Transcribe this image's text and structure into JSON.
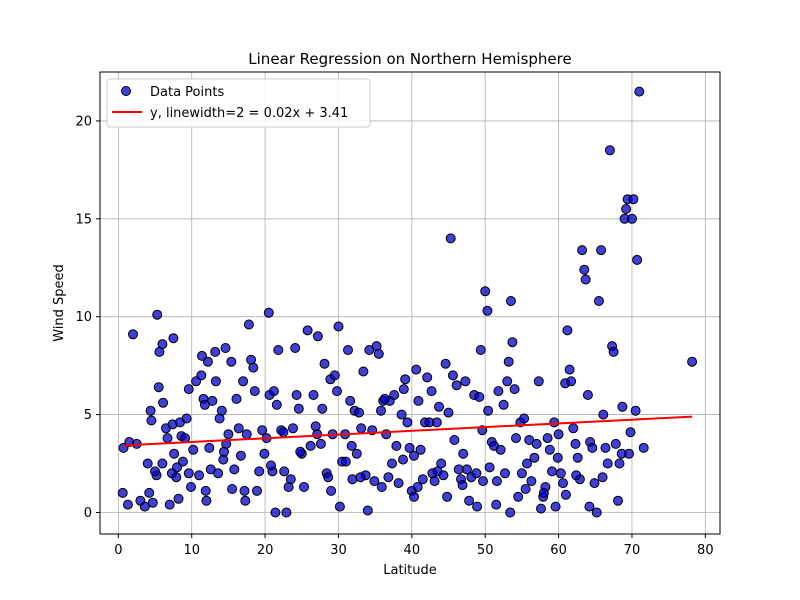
{
  "chart_data": {
    "type": "scatter",
    "title": "Linear Regression on Northern Hemisphere",
    "xlabel": "Latitude",
    "ylabel": "Wind Speed",
    "xlim": [
      -2.5,
      82
    ],
    "ylim": [
      -1.1,
      22.5
    ],
    "xticks": [
      0,
      10,
      20,
      30,
      40,
      50,
      60,
      70,
      80
    ],
    "yticks": [
      0,
      5,
      10,
      15,
      20
    ],
    "grid": true,
    "legend_position": "top-left",
    "colors": {
      "points_fill": "#0000cc",
      "points_stroke": "#000000",
      "line": "#ff0000"
    },
    "series": [
      {
        "name": "Data Points",
        "kind": "scatter",
        "points": [
          [
            0.7,
            3.3
          ],
          [
            1.5,
            3.6
          ],
          [
            2.5,
            3.5
          ],
          [
            2.0,
            9.1
          ],
          [
            3.0,
            0.6
          ],
          [
            1.3,
            0.4
          ],
          [
            0.6,
            1.0
          ],
          [
            4.0,
            2.5
          ],
          [
            4.4,
            5.2
          ],
          [
            4.2,
            1.0
          ],
          [
            4.7,
            0.5
          ],
          [
            4.5,
            4.7
          ],
          [
            5.2,
            1.9
          ],
          [
            5.5,
            6.4
          ],
          [
            5.3,
            10.1
          ],
          [
            5.6,
            8.2
          ],
          [
            6.0,
            8.6
          ],
          [
            6.1,
            5.6
          ],
          [
            6.0,
            2.5
          ],
          [
            6.5,
            4.3
          ],
          [
            6.7,
            3.8
          ],
          [
            7.0,
            0.4
          ],
          [
            7.3,
            2.0
          ],
          [
            7.6,
            3.0
          ],
          [
            7.9,
            1.8
          ],
          [
            7.5,
            8.9
          ],
          [
            7.4,
            4.5
          ],
          [
            8.0,
            2.3
          ],
          [
            8.4,
            4.6
          ],
          [
            8.6,
            3.9
          ],
          [
            8.8,
            2.6
          ],
          [
            9.1,
            3.8
          ],
          [
            9.3,
            4.8
          ],
          [
            9.6,
            6.3
          ],
          [
            9.6,
            2.0
          ],
          [
            10.2,
            3.2
          ],
          [
            10.6,
            6.7
          ],
          [
            11.0,
            1.9
          ],
          [
            11.3,
            7.0
          ],
          [
            11.4,
            8.0
          ],
          [
            11.6,
            5.8
          ],
          [
            11.8,
            5.5
          ],
          [
            11.9,
            1.1
          ],
          [
            12.2,
            7.7
          ],
          [
            12.4,
            3.3
          ],
          [
            12.6,
            2.2
          ],
          [
            12.8,
            5.7
          ],
          [
            13.2,
            8.2
          ],
          [
            13.3,
            6.7
          ],
          [
            13.6,
            2.0
          ],
          [
            13.8,
            4.8
          ],
          [
            14.1,
            5.2
          ],
          [
            14.3,
            2.7
          ],
          [
            14.6,
            8.4
          ],
          [
            14.7,
            3.5
          ],
          [
            15.0,
            4.0
          ],
          [
            15.4,
            7.7
          ],
          [
            15.5,
            1.2
          ],
          [
            15.8,
            2.2
          ],
          [
            16.1,
            5.8
          ],
          [
            16.4,
            4.3
          ],
          [
            16.7,
            2.9
          ],
          [
            17.0,
            6.7
          ],
          [
            17.2,
            1.1
          ],
          [
            17.5,
            4.0
          ],
          [
            17.8,
            9.6
          ],
          [
            18.1,
            7.8
          ],
          [
            18.4,
            7.4
          ],
          [
            18.6,
            6.2
          ],
          [
            18.9,
            1.1
          ],
          [
            19.2,
            2.1
          ],
          [
            19.6,
            4.2
          ],
          [
            19.9,
            3.0
          ],
          [
            20.2,
            3.8
          ],
          [
            20.5,
            10.2
          ],
          [
            20.6,
            6.0
          ],
          [
            21.0,
            2.1
          ],
          [
            21.2,
            6.2
          ],
          [
            21.4,
            0.0
          ],
          [
            21.6,
            5.5
          ],
          [
            21.8,
            8.3
          ],
          [
            22.2,
            4.2
          ],
          [
            22.5,
            4.1
          ],
          [
            22.6,
            2.1
          ],
          [
            22.9,
            0.0
          ],
          [
            23.2,
            1.3
          ],
          [
            23.5,
            1.7
          ],
          [
            23.8,
            4.3
          ],
          [
            24.1,
            8.4
          ],
          [
            24.3,
            6.0
          ],
          [
            24.6,
            5.3
          ],
          [
            25.0,
            3.0
          ],
          [
            25.3,
            1.3
          ],
          [
            25.8,
            9.3
          ],
          [
            26.2,
            3.4
          ],
          [
            26.6,
            6.0
          ],
          [
            26.9,
            4.4
          ],
          [
            27.2,
            9.0
          ],
          [
            27.6,
            3.5
          ],
          [
            27.8,
            5.3
          ],
          [
            28.1,
            7.6
          ],
          [
            28.4,
            2.0
          ],
          [
            28.6,
            1.8
          ],
          [
            28.9,
            6.8
          ],
          [
            29.2,
            4.0
          ],
          [
            29.5,
            7.0
          ],
          [
            29.8,
            6.2
          ],
          [
            30.0,
            9.5
          ],
          [
            30.2,
            0.3
          ],
          [
            30.5,
            2.6
          ],
          [
            30.9,
            4.0
          ],
          [
            31.0,
            2.6
          ],
          [
            31.3,
            8.3
          ],
          [
            31.6,
            5.7
          ],
          [
            31.9,
            1.7
          ],
          [
            32.2,
            5.2
          ],
          [
            32.5,
            3.0
          ],
          [
            32.8,
            5.1
          ],
          [
            33.1,
            4.3
          ],
          [
            33.4,
            7.2
          ],
          [
            33.7,
            1.9
          ],
          [
            34.0,
            0.1
          ],
          [
            34.2,
            8.3
          ],
          [
            34.6,
            4.2
          ],
          [
            34.9,
            1.6
          ],
          [
            35.2,
            8.5
          ],
          [
            35.5,
            8.1
          ],
          [
            35.8,
            5.2
          ],
          [
            36.1,
            5.7
          ],
          [
            36.5,
            4.0
          ],
          [
            36.8,
            1.8
          ],
          [
            37.0,
            5.7
          ],
          [
            37.3,
            2.5
          ],
          [
            37.6,
            6.0
          ],
          [
            37.9,
            3.4
          ],
          [
            38.2,
            1.5
          ],
          [
            38.6,
            5.0
          ],
          [
            38.9,
            6.3
          ],
          [
            39.1,
            6.8
          ],
          [
            39.4,
            4.6
          ],
          [
            39.7,
            3.3
          ],
          [
            40.0,
            1.1
          ],
          [
            40.3,
            0.8
          ],
          [
            40.3,
            2.9
          ],
          [
            40.6,
            7.3
          ],
          [
            40.9,
            5.7
          ],
          [
            41.2,
            3.2
          ],
          [
            41.5,
            1.7
          ],
          [
            41.8,
            4.6
          ],
          [
            42.1,
            6.9
          ],
          [
            42.4,
            4.6
          ],
          [
            42.7,
            6.2
          ],
          [
            42.8,
            2.0
          ],
          [
            43.1,
            1.6
          ],
          [
            43.4,
            4.6
          ],
          [
            43.7,
            5.4
          ],
          [
            44.0,
            2.5
          ],
          [
            44.3,
            1.9
          ],
          [
            44.6,
            7.6
          ],
          [
            45.0,
            5.1
          ],
          [
            45.3,
            14.0
          ],
          [
            45.6,
            7.0
          ],
          [
            45.8,
            3.7
          ],
          [
            46.1,
            6.5
          ],
          [
            46.4,
            2.2
          ],
          [
            46.7,
            1.7
          ],
          [
            47.0,
            3.0
          ],
          [
            47.3,
            6.7
          ],
          [
            47.5,
            2.2
          ],
          [
            47.8,
            0.6
          ],
          [
            48.1,
            1.8
          ],
          [
            48.5,
            6.0
          ],
          [
            48.8,
            2.0
          ],
          [
            49.2,
            5.9
          ],
          [
            49.4,
            8.3
          ],
          [
            49.7,
            1.6
          ],
          [
            50.0,
            11.3
          ],
          [
            50.3,
            10.3
          ],
          [
            50.4,
            5.2
          ],
          [
            50.6,
            2.3
          ],
          [
            50.9,
            3.6
          ],
          [
            51.2,
            3.4
          ],
          [
            51.5,
            0.4
          ],
          [
            51.8,
            6.2
          ],
          [
            52.1,
            3.2
          ],
          [
            52.5,
            5.5
          ],
          [
            52.7,
            2.0
          ],
          [
            53.0,
            6.7
          ],
          [
            53.2,
            7.7
          ],
          [
            53.5,
            10.8
          ],
          [
            53.7,
            8.7
          ],
          [
            54.0,
            6.3
          ],
          [
            54.2,
            3.8
          ],
          [
            54.5,
            0.8
          ],
          [
            54.8,
            4.6
          ],
          [
            55.0,
            2.0
          ],
          [
            55.3,
            4.8
          ],
          [
            55.7,
            2.5
          ],
          [
            56.0,
            3.7
          ],
          [
            56.3,
            1.6
          ],
          [
            56.7,
            2.8
          ],
          [
            57.0,
            3.5
          ],
          [
            57.3,
            6.7
          ],
          [
            57.6,
            0.2
          ],
          [
            57.9,
            0.8
          ],
          [
            58.2,
            1.3
          ],
          [
            58.5,
            3.8
          ],
          [
            58.8,
            3.2
          ],
          [
            59.1,
            2.1
          ],
          [
            59.4,
            4.6
          ],
          [
            59.6,
            0.3
          ],
          [
            60.0,
            4.0
          ],
          [
            60.3,
            2.0
          ],
          [
            60.6,
            1.5
          ],
          [
            60.9,
            6.6
          ],
          [
            61.2,
            9.3
          ],
          [
            61.5,
            7.3
          ],
          [
            61.7,
            6.7
          ],
          [
            62.0,
            4.3
          ],
          [
            62.3,
            3.5
          ],
          [
            62.6,
            2.8
          ],
          [
            62.9,
            1.7
          ],
          [
            63.2,
            13.4
          ],
          [
            63.5,
            12.4
          ],
          [
            63.7,
            11.9
          ],
          [
            64.0,
            6.0
          ],
          [
            64.3,
            3.6
          ],
          [
            64.6,
            3.3
          ],
          [
            64.9,
            1.5
          ],
          [
            65.2,
            0.0
          ],
          [
            65.5,
            10.8
          ],
          [
            65.8,
            13.4
          ],
          [
            66.1,
            5.0
          ],
          [
            66.4,
            3.3
          ],
          [
            66.7,
            2.5
          ],
          [
            67.0,
            18.5
          ],
          [
            67.3,
            8.5
          ],
          [
            67.5,
            8.2
          ],
          [
            67.8,
            3.5
          ],
          [
            68.1,
            0.6
          ],
          [
            68.3,
            2.5
          ],
          [
            68.7,
            5.4
          ],
          [
            69.0,
            15.0
          ],
          [
            69.2,
            15.5
          ],
          [
            69.4,
            16.0
          ],
          [
            69.6,
            3.0
          ],
          [
            69.8,
            4.1
          ],
          [
            70.0,
            15.0
          ],
          [
            70.2,
            16.0
          ],
          [
            70.5,
            5.2
          ],
          [
            70.7,
            12.9
          ],
          [
            71.0,
            21.5
          ],
          [
            71.6,
            3.3
          ],
          [
            78.2,
            7.7
          ],
          [
            3.6,
            0.3
          ],
          [
            5.0,
            2.1
          ],
          [
            8.2,
            0.7
          ],
          [
            9.9,
            1.3
          ],
          [
            12.0,
            0.6
          ],
          [
            14.4,
            3.1
          ],
          [
            17.3,
            0.6
          ],
          [
            20.8,
            2.4
          ],
          [
            24.8,
            3.1
          ],
          [
            27.1,
            4.0
          ],
          [
            29.0,
            1.1
          ],
          [
            31.8,
            3.4
          ],
          [
            33.0,
            1.8
          ],
          [
            35.9,
            1.3
          ],
          [
            36.3,
            5.8
          ],
          [
            38.8,
            2.7
          ],
          [
            40.8,
            1.3
          ],
          [
            43.5,
            2.1
          ],
          [
            44.8,
            0.8
          ],
          [
            46.9,
            1.4
          ],
          [
            48.9,
            0.3
          ],
          [
            49.6,
            4.2
          ],
          [
            51.6,
            1.6
          ],
          [
            53.4,
            0.0
          ],
          [
            55.5,
            1.2
          ],
          [
            58.0,
            1.0
          ],
          [
            59.9,
            2.8
          ],
          [
            61.0,
            0.9
          ],
          [
            62.4,
            1.9
          ],
          [
            64.2,
            0.3
          ],
          [
            66.0,
            1.8
          ],
          [
            68.6,
            3.0
          ]
        ]
      },
      {
        "name": "y, linewidth=2 = 0.02x + 3.41",
        "kind": "line",
        "slope": 0.019,
        "intercept": 3.41,
        "x_range": [
          0.7,
          78.2
        ]
      }
    ]
  }
}
